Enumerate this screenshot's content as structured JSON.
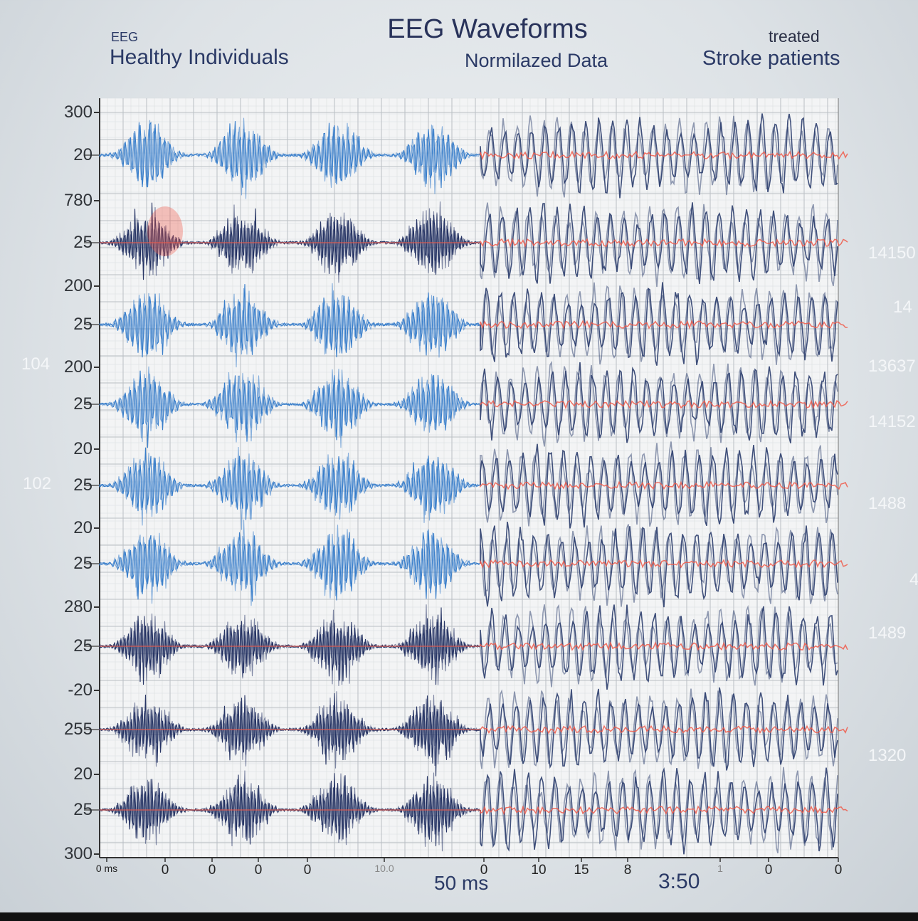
{
  "chart_data": {
    "type": "line",
    "title": "EEG Waveforms",
    "subtitle": "Normilazed Data",
    "left_group": {
      "small_label": "EEG",
      "label": "Healthy Individuals"
    },
    "right_group": {
      "small_label": "treated",
      "label": "Stroke patients"
    },
    "xlabel": "50 ms",
    "x_annotation": "3:50",
    "x_tick_labels": [
      "0 ms",
      "0",
      "0",
      "0",
      "0",
      "10.0",
      "0",
      "10",
      "15",
      "8",
      "1",
      "0",
      "0"
    ],
    "y_major_tick_labels": [
      "300",
      "780",
      "200",
      "200",
      "20",
      "20",
      "280",
      "-20",
      "20",
      "300"
    ],
    "channels": [
      {
        "label": "25",
        "left_style": "blue-burst"
      },
      {
        "label": "25",
        "left_style": "dark-burst"
      },
      {
        "label": "25",
        "left_style": "blue-burst"
      },
      {
        "label": "25",
        "left_style": "blue-burst"
      },
      {
        "label": "25",
        "left_style": "blue-burst"
      },
      {
        "label": "25",
        "left_style": "blue-burst"
      },
      {
        "label": "25",
        "left_style": "dark-burst"
      },
      {
        "label": "255",
        "left_style": "dark-burst"
      },
      {
        "label": "25",
        "left_style": "dark-burst"
      }
    ],
    "first_channel_label": "20",
    "bursts_per_channel_healthy": 4,
    "right_faint_labels": [
      "14150",
      "14",
      "13637",
      "14152",
      "1488",
      "4",
      "1489",
      "1320"
    ],
    "left_faint_labels": [
      "104",
      "102"
    ],
    "grid": true,
    "colors": {
      "healthy": "#2f78c8",
      "healthy_dark": "#1e2c5e",
      "stroke": "#2c3e6e",
      "noise": "#f05a4a",
      "grid": "#b9bec4"
    }
  }
}
